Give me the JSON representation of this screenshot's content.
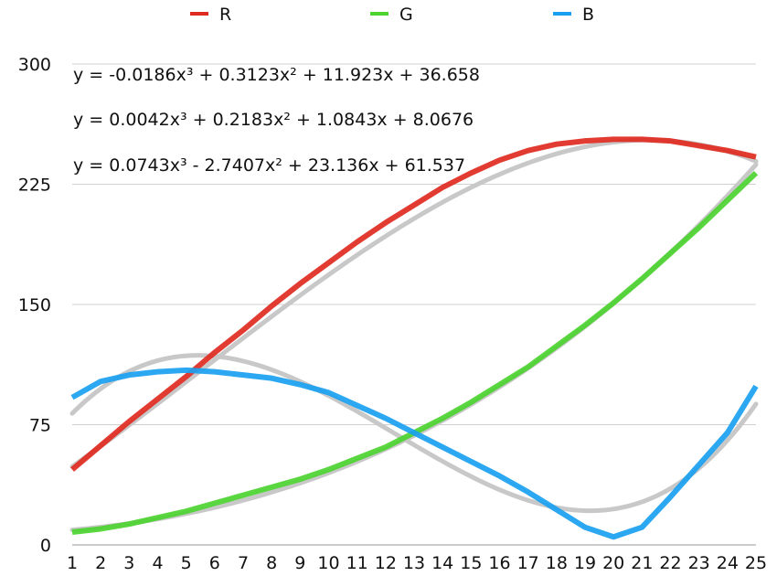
{
  "chart_data": {
    "type": "line",
    "x": [
      1,
      2,
      3,
      4,
      5,
      6,
      7,
      8,
      9,
      10,
      11,
      12,
      13,
      14,
      15,
      16,
      17,
      18,
      19,
      20,
      21,
      22,
      23,
      24,
      25
    ],
    "ylim": [
      0,
      300
    ],
    "yticks": [
      0,
      75,
      150,
      225,
      300
    ],
    "grid": true,
    "legend_position": "top",
    "series": [
      {
        "name": "R",
        "color": "#e02a20",
        "values": [
          47,
          62,
          77,
          91,
          105,
          120,
          134,
          149,
          163,
          176,
          189,
          201,
          212,
          223,
          232,
          240,
          246,
          250,
          252,
          253,
          253,
          252,
          249,
          246,
          242
        ]
      },
      {
        "name": "G",
        "color": "#4cd430",
        "values": [
          8,
          10,
          13,
          17,
          21,
          26,
          31,
          36,
          41,
          47,
          54,
          61,
          70,
          79,
          89,
          100,
          111,
          124,
          137,
          151,
          166,
          182,
          198,
          215,
          232
        ]
      },
      {
        "name": "B",
        "color": "#1a9ff0",
        "values": [
          92,
          102,
          106,
          108,
          109,
          108,
          106,
          104,
          100,
          95,
          87,
          79,
          70,
          61,
          52,
          43,
          33,
          22,
          11,
          5,
          11,
          30,
          50,
          70,
          99
        ]
      }
    ],
    "trendlines": [
      {
        "color": "#c8c8c8",
        "coefficients": [
          -0.0186,
          0.3123,
          11.923,
          36.658
        ]
      },
      {
        "color": "#c8c8c8",
        "coefficients": [
          0.0042,
          0.2183,
          1.0843,
          8.0676
        ]
      },
      {
        "color": "#c8c8c8",
        "coefficients": [
          0.0743,
          -2.7407,
          23.136,
          61.537
        ]
      }
    ],
    "annotations": [
      "y = -0.0186x³ + 0.3123x² + 11.923x + 36.658",
      "y = 0.0042x³ + 0.2183x² + 1.0843x + 8.0676",
      "y = 0.0743x³ - 2.7407x² + 23.136x + 61.537"
    ]
  }
}
